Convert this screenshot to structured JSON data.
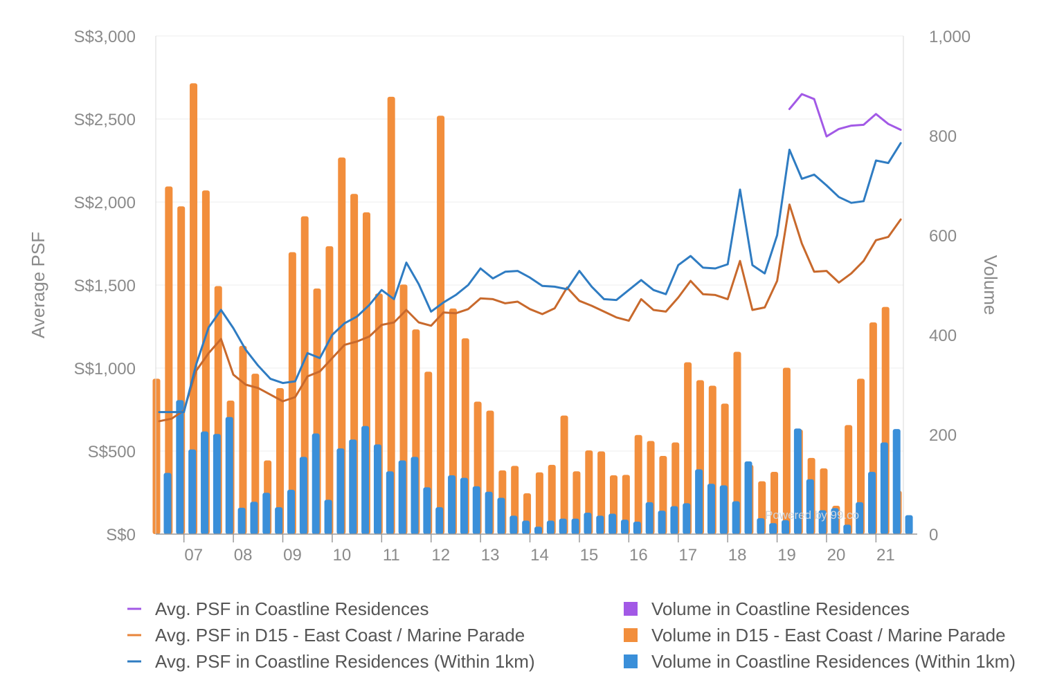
{
  "chart_data": {
    "type": "bar+line",
    "x_tick_labels": [
      "07",
      "08",
      "09",
      "10",
      "11",
      "12",
      "13",
      "14",
      "15",
      "16",
      "17",
      "18",
      "19",
      "20",
      "21"
    ],
    "y_left": {
      "title": "Average PSF",
      "range": [
        0,
        3000
      ],
      "tick_labels": [
        "S$0",
        "S$500",
        "S$1,000",
        "S$1,500",
        "S$2,000",
        "S$2,500",
        "S$3,000"
      ]
    },
    "y_right": {
      "title": "Volume",
      "range": [
        0,
        1000
      ],
      "tick_labels": [
        "0",
        "200",
        "400",
        "600",
        "800",
        "1,000"
      ]
    },
    "periods": 61,
    "watermark": "Powered by 99.co",
    "bar_series": [
      {
        "name": "Volume in Coastline Residences",
        "color": "#a259e6",
        "values": [
          0,
          0,
          0,
          0,
          0,
          0,
          0,
          0,
          0,
          0,
          0,
          0,
          0,
          0,
          0,
          0,
          0,
          0,
          0,
          0,
          0,
          0,
          0,
          0,
          0,
          0,
          0,
          0,
          0,
          0,
          0,
          0,
          0,
          0,
          0,
          0,
          0,
          0,
          0,
          0,
          0,
          0,
          0,
          0,
          0,
          0,
          0,
          0,
          0,
          0,
          0,
          0,
          0,
          0,
          0,
          0,
          0,
          0,
          0,
          0,
          0
        ]
      },
      {
        "name": "Volume in D15 - East Coast / Marine Parade",
        "color": "#f28e3c",
        "values": [
          312,
          698,
          658,
          905,
          690,
          498,
          268,
          378,
          322,
          148,
          293,
          566,
          638,
          493,
          578,
          756,
          683,
          646,
          483,
          878,
          501,
          411,
          326,
          840,
          453,
          393,
          266,
          248,
          128,
          137,
          82,
          124,
          139,
          238,
          126,
          168,
          166,
          118,
          119,
          199,
          187,
          157,
          184,
          345,
          309,
          298,
          262,
          366,
          139,
          106,
          125,
          334,
          210,
          153,
          132,
          57,
          219,
          312,
          425,
          456,
          87
        ]
      },
      {
        "name": "Volume in Coastline Residences (Within 1km)",
        "color": "#3a8fd9",
        "values": [
          123,
          269,
          170,
          206,
          201,
          235,
          53,
          65,
          83,
          54,
          89,
          155,
          202,
          69,
          172,
          190,
          217,
          180,
          126,
          148,
          155,
          94,
          54,
          118,
          113,
          96,
          85,
          73,
          37,
          27,
          15,
          27,
          31,
          31,
          43,
          37,
          41,
          29,
          25,
          64,
          47,
          56,
          62,
          130,
          101,
          98,
          66,
          146,
          32,
          22,
          28,
          212,
          110,
          48,
          52,
          19,
          64,
          125,
          184,
          211,
          38
        ]
      }
    ],
    "line_series": [
      {
        "name": "Avg. PSF in Coastline Residences",
        "color": "#a259e6",
        "values": [
          null,
          null,
          null,
          null,
          null,
          null,
          null,
          null,
          null,
          null,
          null,
          null,
          null,
          null,
          null,
          null,
          null,
          null,
          null,
          null,
          null,
          null,
          null,
          null,
          null,
          null,
          null,
          null,
          null,
          null,
          null,
          null,
          null,
          null,
          null,
          null,
          null,
          null,
          null,
          null,
          null,
          null,
          null,
          null,
          null,
          null,
          null,
          null,
          null,
          null,
          null,
          2560,
          2650,
          2620,
          2395,
          2440,
          2460,
          2465,
          2530,
          2470,
          2435
        ]
      },
      {
        "name": "Avg. PSF in D15 - East Coast / Marine Parade",
        "color": "#c8692c",
        "values": [
          680,
          695,
          745,
          985,
          1090,
          1175,
          960,
          900,
          880,
          840,
          800,
          825,
          950,
          980,
          1060,
          1140,
          1160,
          1190,
          1260,
          1275,
          1350,
          1275,
          1255,
          1335,
          1330,
          1355,
          1420,
          1415,
          1390,
          1400,
          1355,
          1325,
          1360,
          1485,
          1405,
          1375,
          1340,
          1305,
          1285,
          1415,
          1350,
          1340,
          1425,
          1525,
          1445,
          1440,
          1415,
          1645,
          1350,
          1365,
          1525,
          1985,
          1750,
          1580,
          1585,
          1515,
          1570,
          1645,
          1770,
          1790,
          1895
        ]
      },
      {
        "name": "Avg. PSF in Coastline Residences (Within 1km)",
        "color": "#2f7cc2",
        "values": [
          735,
          735,
          735,
          1025,
          1245,
          1350,
          1240,
          1110,
          1015,
          935,
          910,
          920,
          1090,
          1060,
          1200,
          1270,
          1310,
          1380,
          1470,
          1415,
          1635,
          1505,
          1340,
          1395,
          1440,
          1500,
          1600,
          1540,
          1580,
          1585,
          1545,
          1495,
          1490,
          1475,
          1585,
          1490,
          1415,
          1410,
          1470,
          1530,
          1470,
          1445,
          1620,
          1675,
          1605,
          1600,
          1625,
          2075,
          1620,
          1570,
          1800,
          2315,
          2140,
          2165,
          2100,
          2030,
          1995,
          2005,
          2250,
          2235,
          2355
        ]
      }
    ]
  },
  "legend": {
    "lines": [
      {
        "label": "Avg. PSF in Coastline Residences",
        "color": "#a259e6"
      },
      {
        "label": "Avg. PSF in D15 - East Coast / Marine Parade",
        "color": "#e8843a"
      },
      {
        "label": "Avg. PSF in Coastline Residences (Within 1km)",
        "color": "#2f7cc2"
      }
    ],
    "bars": [
      {
        "label": "Volume in Coastline Residences",
        "color": "#a259e6"
      },
      {
        "label": "Volume in D15 - East Coast / Marine Parade",
        "color": "#f28e3c"
      },
      {
        "label": "Volume in Coastline Residences (Within 1km)",
        "color": "#3a8fd9"
      }
    ]
  }
}
